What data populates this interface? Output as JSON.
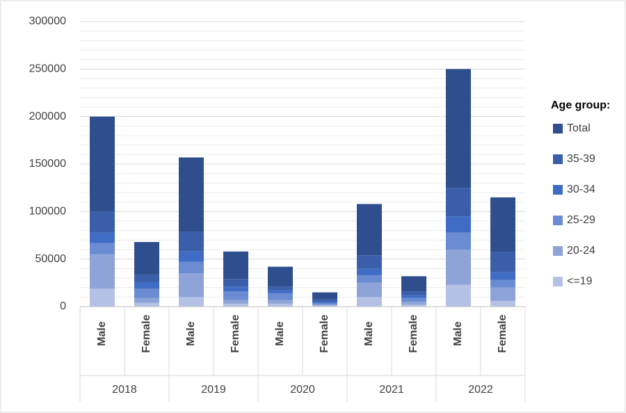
{
  "chart_data": {
    "type": "stacked_bar",
    "groups": [
      "2018",
      "2019",
      "2020",
      "2021",
      "2022"
    ],
    "categories": [
      "Male",
      "Female",
      "Male",
      "Female",
      "Male",
      "Female",
      "Male",
      "Female",
      "Male",
      "Female"
    ],
    "legend_title": "Age group:",
    "series": [
      {
        "name": "<=19",
        "color": "#b4c1e4",
        "values": [
          19000,
          4000,
          10000,
          3000,
          3000,
          1000,
          10000,
          2000,
          23000,
          6000
        ]
      },
      {
        "name": "20-24",
        "color": "#8ea4d9",
        "values": [
          36000,
          5000,
          25000,
          4000,
          4000,
          1000,
          15000,
          3000,
          37000,
          14000
        ]
      },
      {
        "name": "25-29",
        "color": "#6b8cd2",
        "values": [
          12000,
          10000,
          12000,
          9000,
          7000,
          2000,
          8000,
          4000,
          18000,
          8000
        ]
      },
      {
        "name": "30-34",
        "color": "#3f6dc5",
        "values": [
          11000,
          7000,
          11000,
          5000,
          3000,
          1500,
          7000,
          3000,
          17000,
          8000
        ]
      },
      {
        "name": "35-39",
        "color": "#3a5ea9",
        "values": [
          22000,
          8000,
          21000,
          8000,
          4000,
          2000,
          14000,
          4000,
          30000,
          21500
        ]
      },
      {
        "name": "Total",
        "color": "#2f4e8e",
        "values": [
          100000,
          34000,
          78000,
          29000,
          21000,
          7500,
          54000,
          16000,
          125000,
          57500
        ]
      }
    ],
    "ylim": [
      0,
      300000
    ],
    "yticks": [
      0,
      50000,
      100000,
      150000,
      200000,
      250000,
      300000
    ],
    "minor_step": 10000,
    "grid": true,
    "legend": "right"
  }
}
